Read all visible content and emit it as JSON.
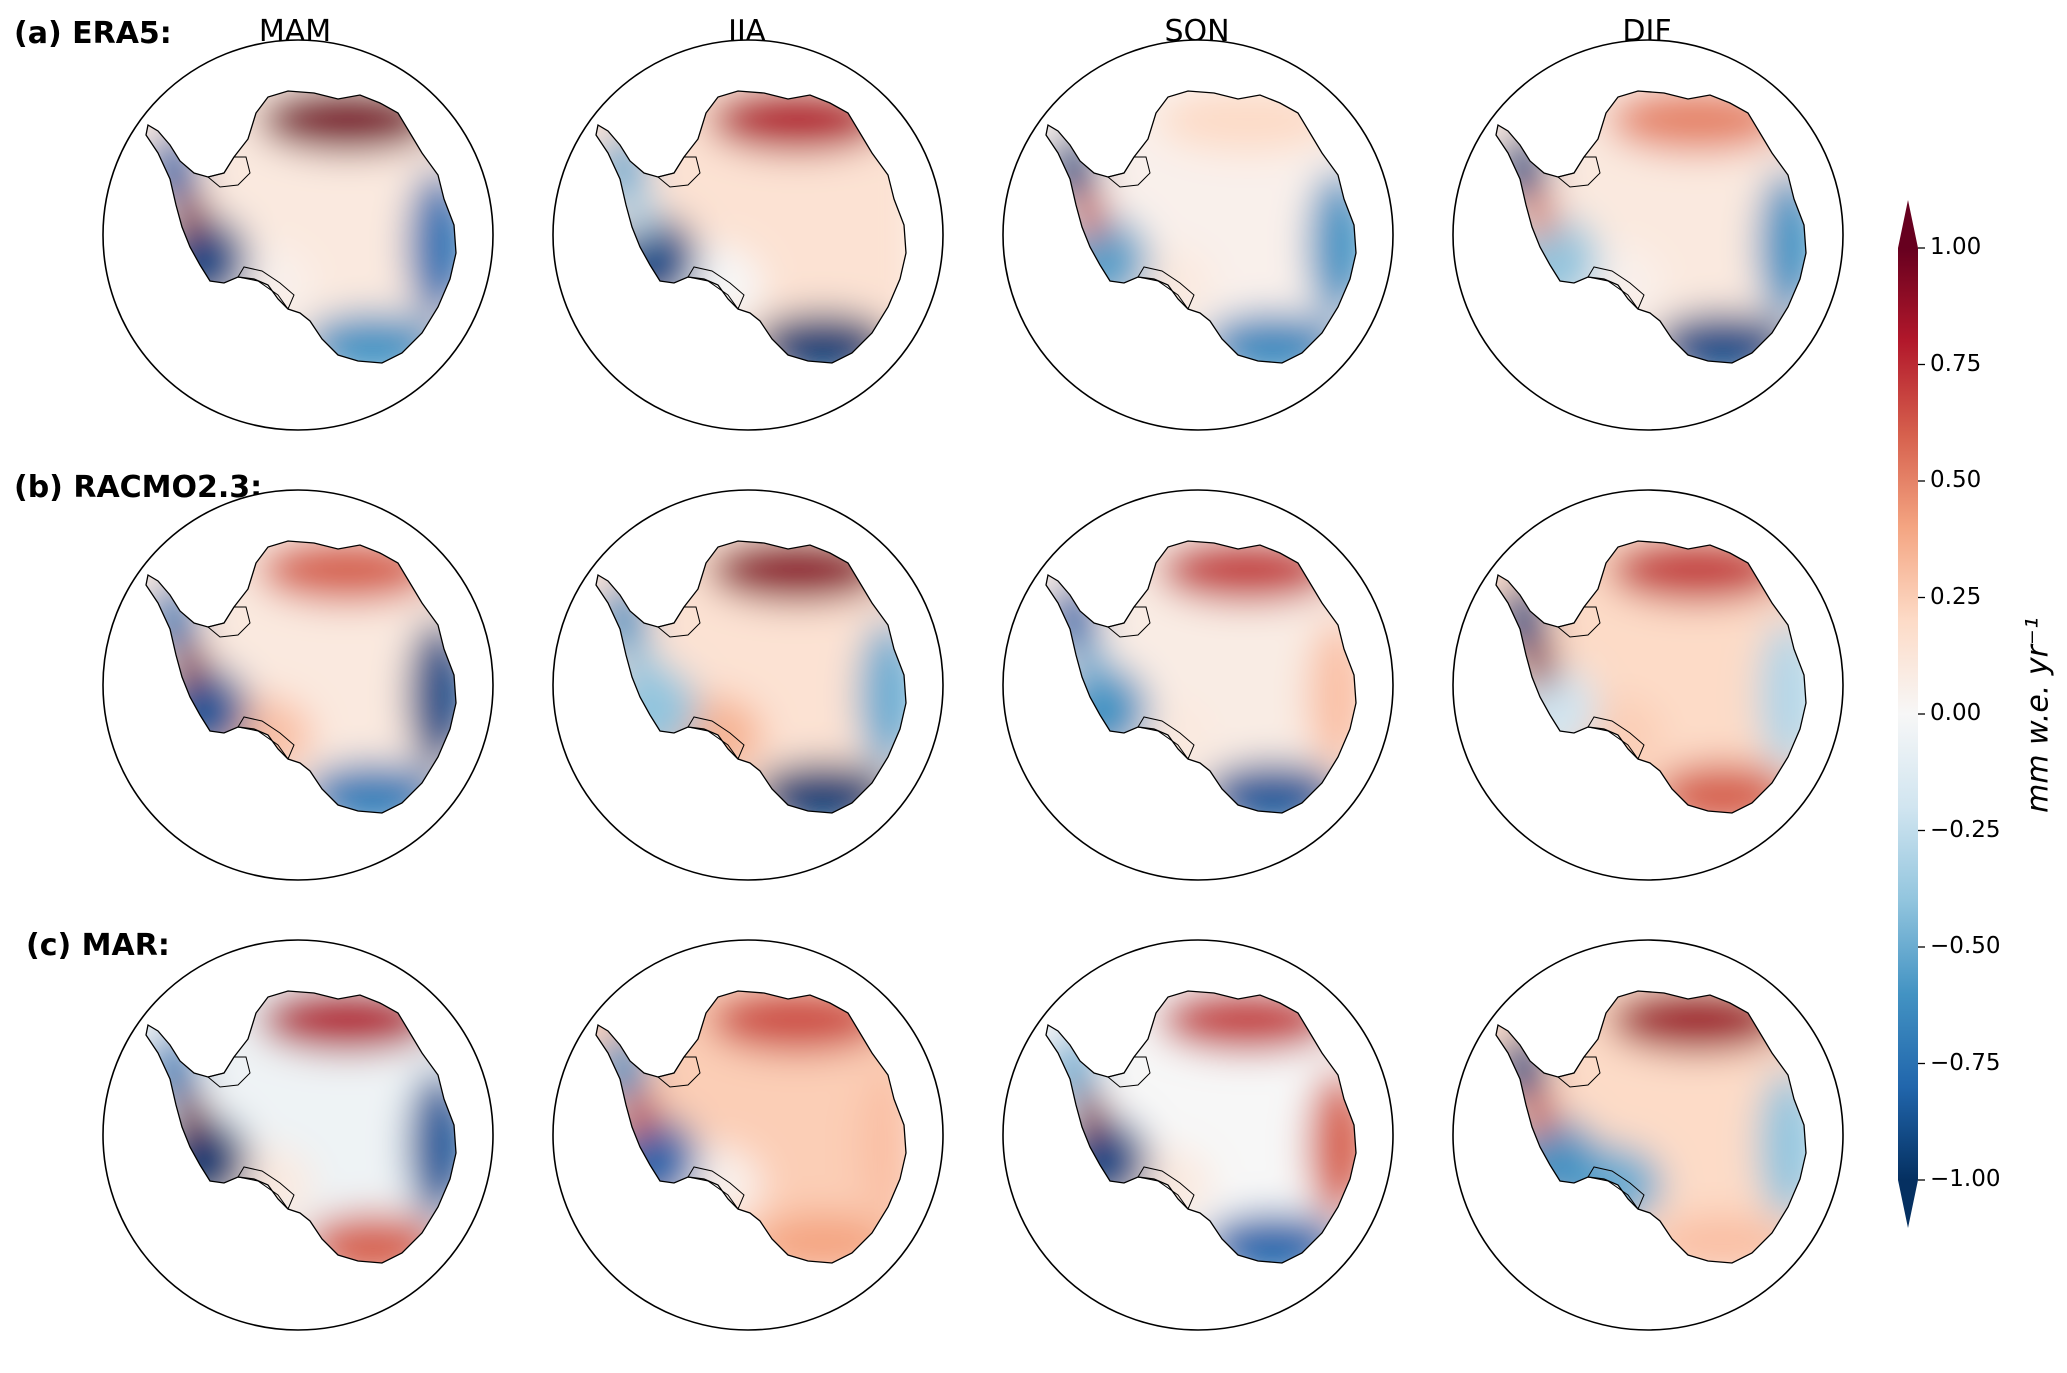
{
  "rows": [
    {
      "label": "(a) ERA5:",
      "panels": [
        {
          "id": "MAM",
          "pattern": {
            "peninsula": -0.8,
            "peninsula_tip": 0.9,
            "west": -0.9,
            "dml": 0.95,
            "east_coast": -0.75,
            "wilkes": -0.6,
            "interior": 0.1,
            "ross_side": 0.05
          }
        },
        {
          "id": "JJA",
          "pattern": {
            "peninsula": -0.5,
            "peninsula_tip": -0.3,
            "west": -0.9,
            "dml": 0.8,
            "east_coast": 0.15,
            "wilkes": -0.95,
            "interior": 0.15,
            "ross_side": 0.0
          }
        },
        {
          "id": "SON",
          "pattern": {
            "peninsula": -0.9,
            "peninsula_tip": 0.6,
            "west": -0.55,
            "dml": 0.2,
            "east_coast": -0.6,
            "wilkes": -0.65,
            "interior": 0.05,
            "ross_side": 0.1
          }
        },
        {
          "id": "DJF",
          "pattern": {
            "peninsula": -0.9,
            "peninsula_tip": 0.5,
            "west": -0.4,
            "dml": 0.5,
            "east_coast": -0.6,
            "wilkes": -0.9,
            "interior": 0.1,
            "ross_side": 0.05
          }
        }
      ]
    },
    {
      "label": "(b) RACMO2.3:",
      "panels": [
        {
          "id": "MAM",
          "pattern": {
            "peninsula": -0.7,
            "peninsula_tip": 0.9,
            "west": -0.85,
            "dml": 0.6,
            "east_coast": -0.9,
            "wilkes": -0.7,
            "interior": 0.1,
            "ross_side": 0.3
          }
        },
        {
          "id": "JJA",
          "pattern": {
            "peninsula": -0.6,
            "peninsula_tip": -0.4,
            "west": -0.4,
            "dml": 0.9,
            "east_coast": -0.5,
            "wilkes": -0.95,
            "interior": 0.15,
            "ross_side": 0.35
          }
        },
        {
          "id": "SON",
          "pattern": {
            "peninsula": -0.8,
            "peninsula_tip": -0.5,
            "west": -0.6,
            "dml": 0.7,
            "east_coast": 0.3,
            "wilkes": -0.85,
            "interior": 0.08,
            "ross_side": 0.1
          }
        },
        {
          "id": "DJF",
          "pattern": {
            "peninsula": -0.9,
            "peninsula_tip": 0.9,
            "west": -0.2,
            "dml": 0.7,
            "east_coast": -0.3,
            "wilkes": 0.6,
            "interior": 0.2,
            "ross_side": 0.25
          }
        }
      ]
    },
    {
      "label": "(c) MAR:",
      "panels": [
        {
          "id": "MAM",
          "pattern": {
            "peninsula": -0.7,
            "peninsula_tip": 0.95,
            "west": -0.95,
            "dml": 0.8,
            "east_coast": -0.85,
            "wilkes": 0.6,
            "interior": -0.05,
            "ross_side": 0.1
          }
        },
        {
          "id": "JJA",
          "pattern": {
            "peninsula": -0.6,
            "peninsula_tip": 0.7,
            "west": -0.8,
            "dml": 0.65,
            "east_coast": 0.3,
            "wilkes": 0.4,
            "interior": 0.25,
            "ross_side": 0.05
          }
        },
        {
          "id": "SON",
          "pattern": {
            "peninsula": -0.5,
            "peninsula_tip": 0.9,
            "west": -0.9,
            "dml": 0.7,
            "east_coast": 0.6,
            "wilkes": -0.8,
            "interior": 0.0,
            "ross_side": 0.1
          }
        },
        {
          "id": "DJF",
          "pattern": {
            "peninsula": -0.9,
            "peninsula_tip": 0.6,
            "west": -0.6,
            "dml": 0.85,
            "east_coast": -0.4,
            "wilkes": 0.3,
            "interior": 0.2,
            "ross_side": -0.5
          }
        }
      ]
    }
  ],
  "column_titles": [
    "MAM",
    "JJA",
    "SON",
    "DJF"
  ],
  "colorbar": {
    "label": "mm w.e. yr⁻¹",
    "ticks": [
      "1.00",
      "0.75",
      "0.50",
      "0.25",
      "0.00",
      "−0.25",
      "−0.50",
      "−0.75",
      "−1.00"
    ],
    "min": -1.0,
    "max": 1.0,
    "extend": "both",
    "colormap": "RdBu_r",
    "stops": [
      "#053061",
      "#2166ac",
      "#4393c3",
      "#92c5de",
      "#d1e5f0",
      "#f7f7f7",
      "#fddbc7",
      "#f4a582",
      "#d6604d",
      "#b2182b",
      "#67001f"
    ]
  },
  "colors": {
    "outline": "#000000",
    "background": "#ffffff"
  }
}
